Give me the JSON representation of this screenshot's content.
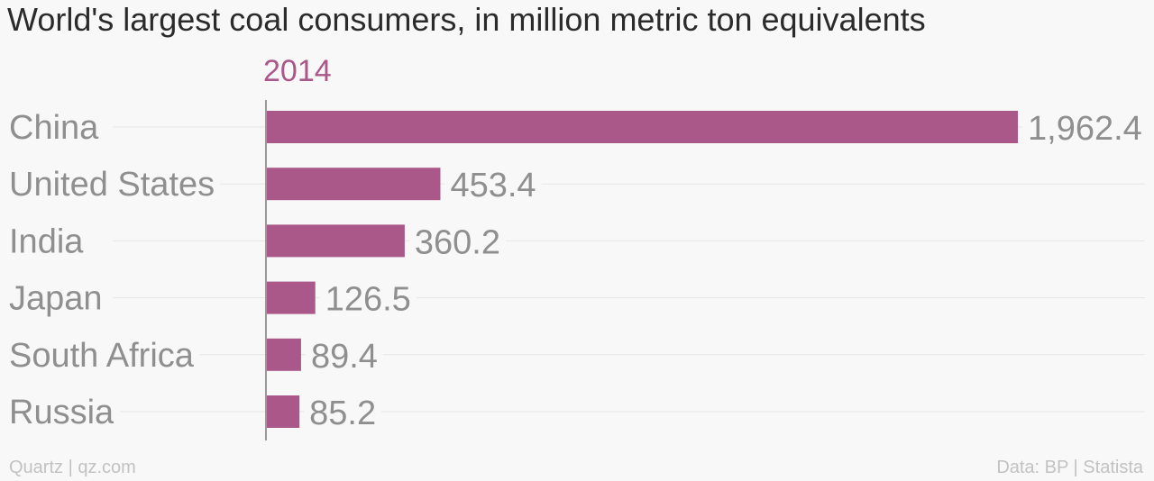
{
  "title": "World's largest coal consumers, in million metric ton equivalents",
  "footer": {
    "source_left": "Quartz | qz.com",
    "source_right": "Data: BP | Statista"
  },
  "colors": {
    "bar": "#aa5889",
    "series_label": "#aa5889",
    "category_text": "#8f8f8f",
    "value_text": "#8f8f8f",
    "gridline": "#e6e6e6",
    "axis": "#7a7a7a"
  },
  "chart_data": {
    "type": "bar",
    "orientation": "horizontal",
    "series": [
      {
        "name": "2014",
        "values": [
          1962.4,
          453.4,
          360.2,
          126.5,
          89.4,
          85.2
        ]
      }
    ],
    "categories": [
      "China",
      "United States",
      "India",
      "Japan",
      "South Africa",
      "Russia"
    ],
    "value_labels": [
      "1,962.4",
      "453.4",
      "360.2",
      "126.5",
      "89.4",
      "85.2"
    ],
    "xlim": [
      0,
      1962.4
    ],
    "grid": true,
    "legend": "top"
  }
}
